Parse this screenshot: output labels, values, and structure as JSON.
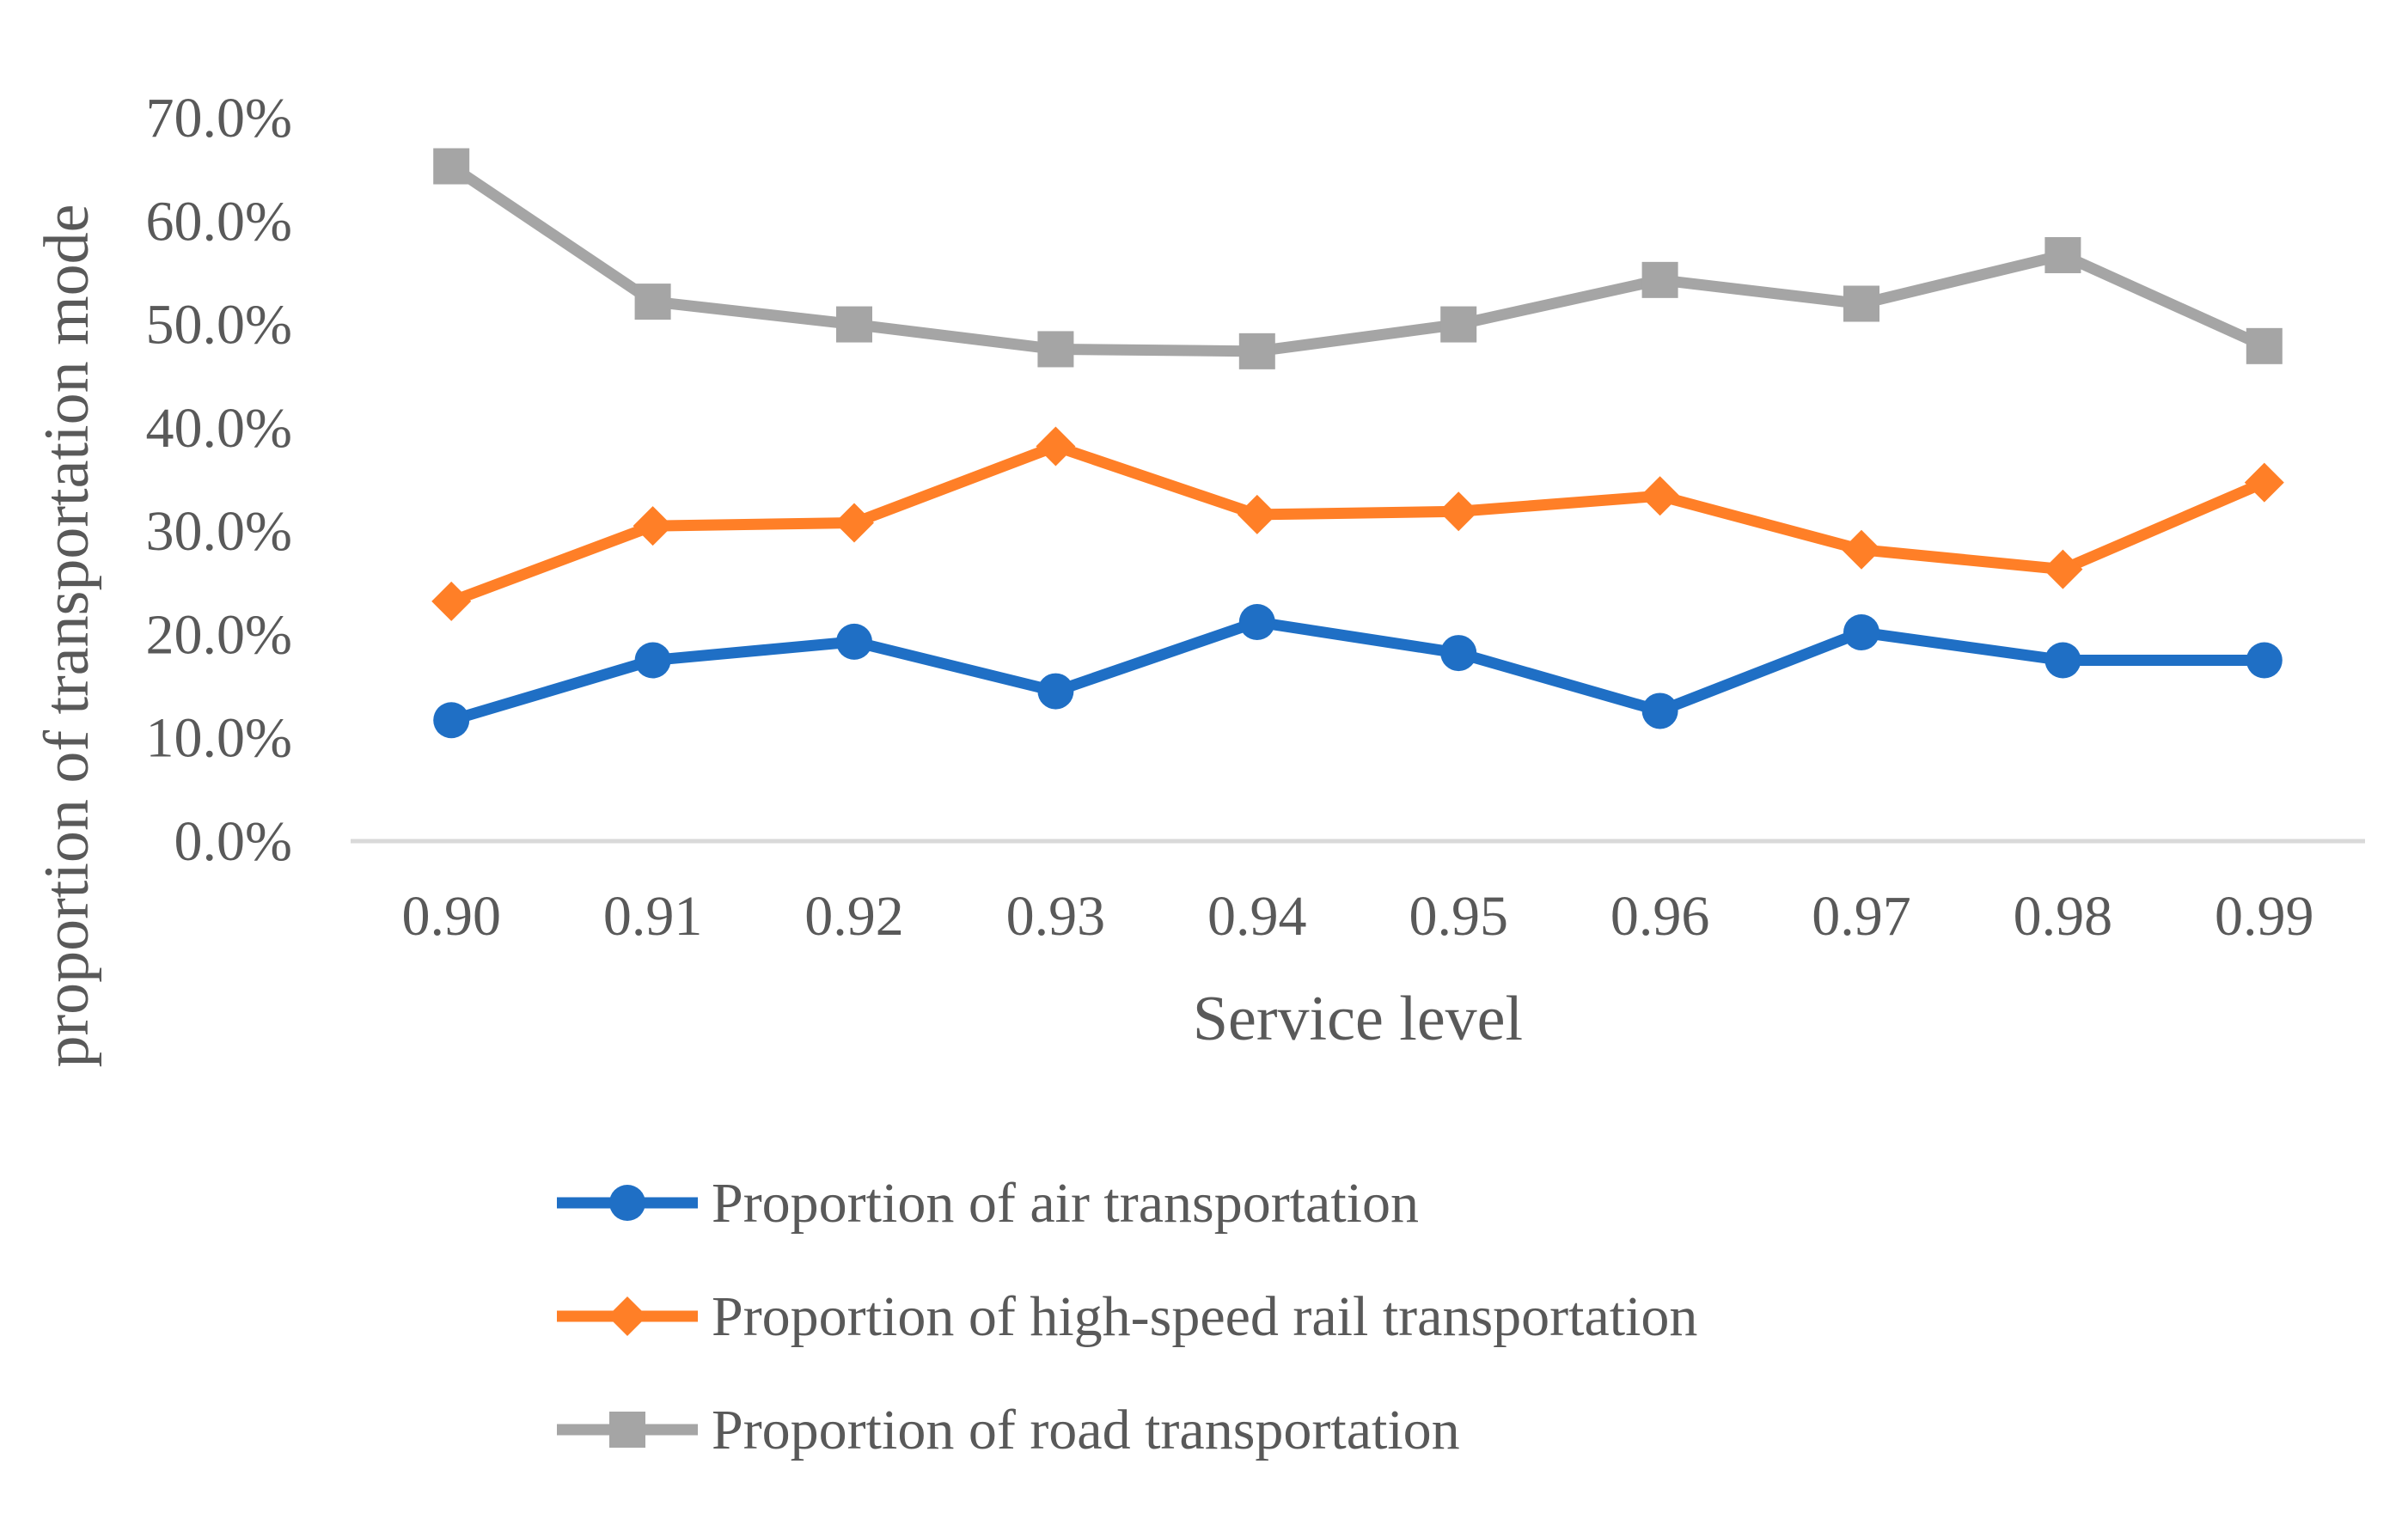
{
  "chart_data": {
    "type": "line",
    "title": "",
    "xlabel": "Service level",
    "ylabel": "proportion of transportation mode",
    "categories": [
      "0.90",
      "0.91",
      "0.92",
      "0.93",
      "0.94",
      "0.95",
      "0.96",
      "0.97",
      "0.98",
      "0.99"
    ],
    "ylim": [
      0,
      70
    ],
    "yticks": [
      0,
      10,
      20,
      30,
      40,
      50,
      60,
      70
    ],
    "ytick_labels": [
      "0.0%",
      "10.0%",
      "20.0%",
      "30.0%",
      "40.0%",
      "50.0%",
      "60.0%",
      "70.0%"
    ],
    "grid": false,
    "legend_position": "bottom",
    "series": [
      {
        "name": "Proportion of air transportation",
        "color": "#1F6FC5",
        "marker": "circle",
        "values": [
          11.7,
          17.5,
          19.3,
          14.5,
          21.2,
          18.2,
          12.6,
          20.2,
          17.5,
          17.5
        ]
      },
      {
        "name": "Proportion of high-speed rail transportation",
        "color": "#FF7F27",
        "marker": "diamond",
        "values": [
          23.2,
          30.5,
          30.8,
          38.2,
          31.6,
          31.9,
          33.4,
          28.2,
          26.3,
          34.7
        ]
      },
      {
        "name": "Proportion of road transportation",
        "color": "#A5A5A5",
        "marker": "square",
        "values": [
          65.3,
          52.2,
          50.0,
          47.6,
          47.4,
          50.0,
          54.3,
          52.0,
          56.7,
          47.9
        ]
      }
    ]
  }
}
